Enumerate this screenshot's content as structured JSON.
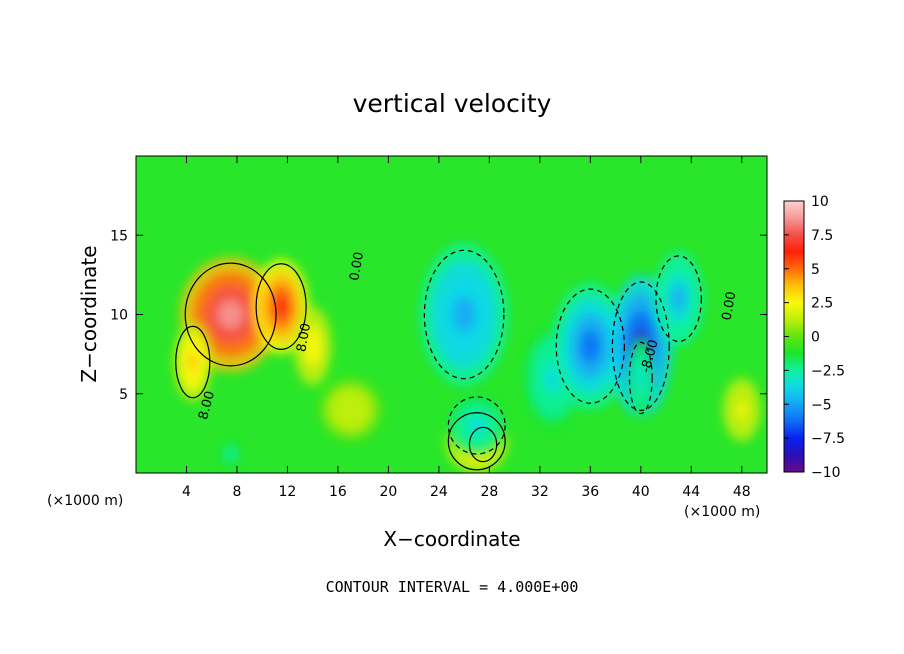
{
  "chart_data": {
    "type": "heatmap",
    "title": "vertical velocity",
    "xlabel": "X−coordinate",
    "ylabel": "Z−coordinate",
    "x_unit_label": "(×1000 m)",
    "x_unit_label_right": "(×1000 m)",
    "footer": "CONTOUR INTERVAL = 4.000E+00",
    "xlim": [
      0,
      50
    ],
    "ylim": [
      0,
      20
    ],
    "x_ticks": [
      4,
      8,
      12,
      16,
      20,
      24,
      28,
      32,
      36,
      40,
      44,
      48
    ],
    "x_tick_labels": [
      "4",
      "8",
      "12",
      "16",
      "20",
      "24",
      "28",
      "32",
      "36",
      "40",
      "44",
      "48"
    ],
    "y_ticks": [
      5,
      10,
      15
    ],
    "y_tick_labels": [
      "5",
      "10",
      "15"
    ],
    "colorbar": {
      "range": [
        -10,
        10
      ],
      "ticks": [
        10,
        7.5,
        5,
        2.5,
        0,
        -2.5,
        -5,
        -7.5,
        -10
      ],
      "tick_labels": [
        "10",
        "7.5",
        "5",
        "2.5",
        "0",
        "−2.5",
        "−5",
        "−7.5",
        "−10"
      ],
      "colors": [
        "#6a0a8a",
        "#2a10b8",
        "#0a20f0",
        "#0f6cf5",
        "#13a6f5",
        "#10d8e8",
        "#0ff0a0",
        "#1ae62a",
        "#62e40e",
        "#bfee0a",
        "#fbf80c",
        "#fdc10a",
        "#ff6a0a",
        "#ff1f0a",
        "#f4504a",
        "#f49a9a",
        "#ffd0d0"
      ]
    },
    "features": [
      {
        "x": 7.5,
        "z": 10,
        "sx": 4.0,
        "sz": 3.6,
        "value": 9
      },
      {
        "x": 11.5,
        "z": 10.5,
        "sx": 2.2,
        "sz": 3.0,
        "value": 6
      },
      {
        "x": 4.5,
        "z": 7,
        "sx": 1.5,
        "sz": 2.5,
        "value": 4
      },
      {
        "x": 14,
        "z": 8,
        "sx": 1.5,
        "sz": 2.5,
        "value": 3
      },
      {
        "x": 27.5,
        "z": 1.8,
        "sx": 1.2,
        "sz": 1.2,
        "value": 8
      },
      {
        "x": 27,
        "z": 2,
        "sx": 2.5,
        "sz": 2,
        "value": 4
      },
      {
        "x": 26,
        "z": 10,
        "sx": 3.5,
        "sz": 4.5,
        "value": -5.5
      },
      {
        "x": 27,
        "z": 3,
        "sx": 2.5,
        "sz": 2,
        "value": -4
      },
      {
        "x": 33,
        "z": 6,
        "sx": 2.5,
        "sz": 3.5,
        "value": -3.5
      },
      {
        "x": 36,
        "z": 8,
        "sx": 3.0,
        "sz": 4.0,
        "value": -6
      },
      {
        "x": 40,
        "z": 8,
        "sx": 2.5,
        "sz": 4.5,
        "value": -8.5
      },
      {
        "x": 43,
        "z": 11,
        "sx": 2.0,
        "sz": 3.0,
        "value": -5
      },
      {
        "x": 40,
        "z": 6,
        "sx": 1.0,
        "sz": 2.5,
        "value": -4
      },
      {
        "x": 7.5,
        "z": 1.2,
        "sx": 1.0,
        "sz": 1.0,
        "value": -3
      },
      {
        "x": 17,
        "z": 4,
        "sx": 2.5,
        "sz": 2.0,
        "value": 1.5
      },
      {
        "x": 48,
        "z": 4,
        "sx": 1.5,
        "sz": 2.0,
        "value": 2
      }
    ],
    "contour_labels": [
      {
        "text": "0.00",
        "x": 17.8,
        "z": 13,
        "angle": -80
      },
      {
        "text": "0.00",
        "x": 47.3,
        "z": 10.5,
        "angle": -80
      },
      {
        "text": "8.00",
        "x": 13.6,
        "z": 8.5,
        "angle": -80
      },
      {
        "text": "8.00",
        "x": 5.9,
        "z": 4.2,
        "angle": -75
      },
      {
        "text": "-8.00",
        "x": 41,
        "z": 7.3,
        "angle": -75
      }
    ]
  }
}
